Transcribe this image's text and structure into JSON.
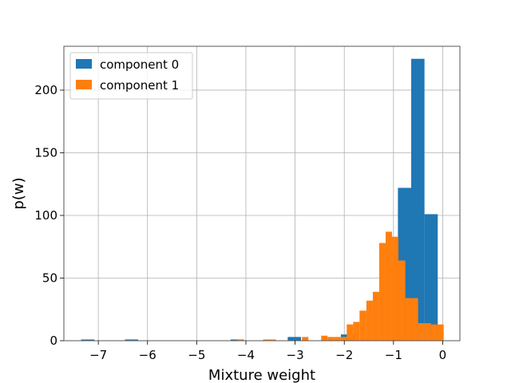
{
  "chart_data": {
    "type": "bar",
    "xlabel": "Mixture weight",
    "ylabel": "p(w)",
    "xlim": [
      -7.7,
      0.35
    ],
    "ylim": [
      0,
      235
    ],
    "grid": true,
    "legend_position": "top-left",
    "xticks": [
      -7,
      -6,
      -5,
      -4,
      -3,
      -2,
      -1,
      0
    ],
    "xtick_labels": [
      "−7",
      "−6",
      "−5",
      "−4",
      "−3",
      "−2",
      "−1",
      "0"
    ],
    "yticks": [
      0,
      50,
      100,
      150,
      200
    ],
    "ytick_labels": [
      "0",
      "50",
      "100",
      "150",
      "200"
    ],
    "series": [
      {
        "name": "component 0",
        "color": "#1f77b4",
        "bins": [
          {
            "x0": -7.35,
            "x1": -7.08,
            "value": 1
          },
          {
            "x0": -6.46,
            "x1": -6.19,
            "value": 1
          },
          {
            "x0": -4.31,
            "x1": -4.04,
            "value": 1
          },
          {
            "x0": -3.15,
            "x1": -2.88,
            "value": 3
          },
          {
            "x0": -2.07,
            "x1": -1.8,
            "value": 5
          },
          {
            "x0": -0.91,
            "x1": -0.64,
            "value": 122
          },
          {
            "x0": -0.64,
            "x1": -0.37,
            "value": 225
          },
          {
            "x0": -0.37,
            "x1": -0.1,
            "value": 101
          }
        ]
      },
      {
        "name": "component 1",
        "color": "#ff7f0e",
        "bins": [
          {
            "x0": -4.18,
            "x1": -4.05,
            "value": 1
          },
          {
            "x0": -3.65,
            "x1": -3.52,
            "value": 1
          },
          {
            "x0": -3.52,
            "x1": -3.39,
            "value": 1
          },
          {
            "x0": -2.86,
            "x1": -2.73,
            "value": 3
          },
          {
            "x0": -2.47,
            "x1": -2.34,
            "value": 4
          },
          {
            "x0": -2.34,
            "x1": -2.21,
            "value": 3
          },
          {
            "x0": -2.21,
            "x1": -2.08,
            "value": 3
          },
          {
            "x0": -2.08,
            "x1": -1.95,
            "value": 3
          },
          {
            "x0": -1.95,
            "x1": -1.82,
            "value": 13
          },
          {
            "x0": -1.82,
            "x1": -1.69,
            "value": 15
          },
          {
            "x0": -1.69,
            "x1": -1.55,
            "value": 24
          },
          {
            "x0": -1.55,
            "x1": -1.42,
            "value": 32
          },
          {
            "x0": -1.42,
            "x1": -1.29,
            "value": 39
          },
          {
            "x0": -1.29,
            "x1": -1.16,
            "value": 78
          },
          {
            "x0": -1.16,
            "x1": -1.03,
            "value": 87
          },
          {
            "x0": -1.03,
            "x1": -0.9,
            "value": 83
          },
          {
            "x0": -0.9,
            "x1": -0.76,
            "value": 64
          },
          {
            "x0": -0.76,
            "x1": -0.63,
            "value": 34
          },
          {
            "x0": -0.63,
            "x1": -0.5,
            "value": 34
          },
          {
            "x0": -0.5,
            "x1": -0.37,
            "value": 14
          },
          {
            "x0": -0.37,
            "x1": -0.24,
            "value": 14
          },
          {
            "x0": -0.24,
            "x1": -0.11,
            "value": 13
          },
          {
            "x0": -0.11,
            "x1": 0.02,
            "value": 13
          }
        ]
      }
    ]
  }
}
